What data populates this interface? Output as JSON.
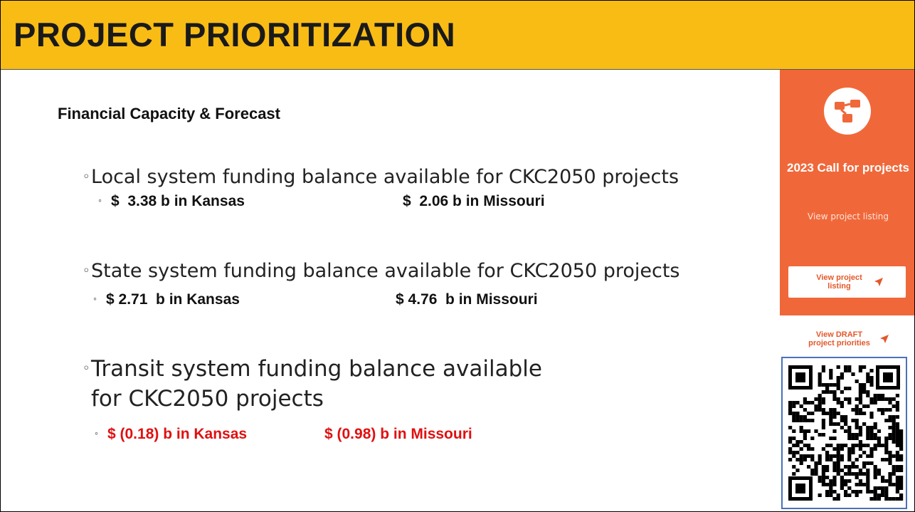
{
  "header": {
    "title": "PROJECT PRIORITIZATION"
  },
  "section": {
    "title": "Financial Capacity & Forecast",
    "items": [
      {
        "text": "Local system funding balance available for CKC2050 projects",
        "details": [
          "$  3.38 b in Kansas",
          "$  2.06 b in Missouri"
        ]
      },
      {
        "text": "State system funding balance available for CKC2050 projects",
        "details": [
          "$ 2.71  b in Kansas",
          "$ 4.76  b in Missouri"
        ]
      },
      {
        "text": "Transit system funding balance available for CKC2050 projects",
        "details": [
          "$ (0.18) b in Kansas",
          "$ (0.98) b in Missouri"
        ]
      }
    ]
  },
  "sidebar": {
    "title": "2023 Call for projects",
    "link": "View project listing",
    "buttons": [
      "View project listing",
      "View DRAFT project priorities"
    ]
  }
}
